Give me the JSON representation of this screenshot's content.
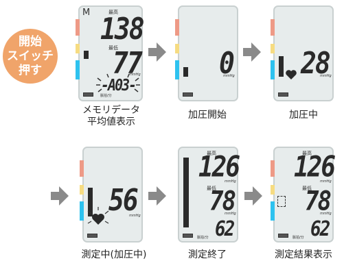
{
  "badge": {
    "line1": "開始",
    "line2": "スイッチ",
    "line3": "押す"
  },
  "screen1": {
    "mode_letter": "M",
    "sys_label": "最高",
    "sys_value": "138",
    "dia_label": "最低",
    "dia_value": "77",
    "unit": "mmHg",
    "message": "-A03-",
    "pulse_label": "脈拍/分",
    "caption1": "メモリデータ",
    "caption2": "平均値表示"
  },
  "screen2": {
    "value": "0",
    "unit": "mmHg",
    "caption": "加圧開始"
  },
  "screen3": {
    "value": "28",
    "unit": "mmHg",
    "caption": "加圧中"
  },
  "screen4": {
    "value": "56",
    "unit": "mmHg",
    "caption": "測定中(加圧中)"
  },
  "screen5": {
    "sys_label": "最高",
    "sys_value": "126",
    "dia_label": "最低",
    "dia_value": "78",
    "unit": "mmHg",
    "pulse_value": "62",
    "pulse_label": "脈拍/分",
    "caption": "測定終了"
  },
  "screen6": {
    "sys_label": "最高",
    "sys_value": "126",
    "dia_label": "最低",
    "dia_value": "78",
    "unit": "mmHg",
    "pulse_value": "62",
    "pulse_label": "脈拍/分",
    "caption": "測定結果表示"
  },
  "colors": {
    "badge": "#f0a46a",
    "screen": "#e7ecec",
    "red": "#ee9a86",
    "yellow": "#f6dc82",
    "blue": "#2ec2ef",
    "arrow": "#8a8a8a"
  }
}
